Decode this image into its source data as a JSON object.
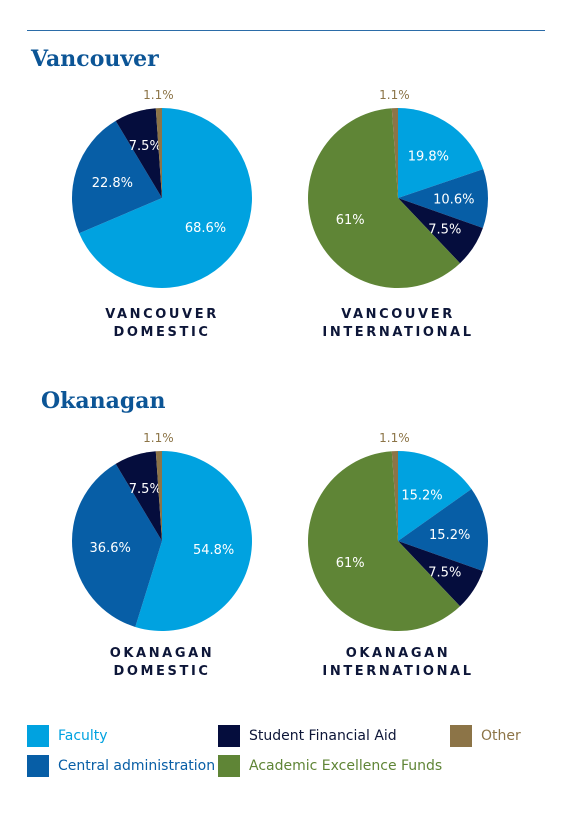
{
  "sections": [
    {
      "title": "Vancouver"
    },
    {
      "title": "Okanagan"
    }
  ],
  "colors": {
    "Faculty": "#00a2e0",
    "Central administration": "#075ea6",
    "Student Financial Aid": "#050d3d",
    "Other": "#8c7447",
    "Academic Excellence Funds": "#5f8536"
  },
  "legend": [
    {
      "label": "Faculty",
      "color": "#00a2e0",
      "text_color": "#00a2e0"
    },
    {
      "label": "Student Financial Aid",
      "color": "#050d3d",
      "text_color": "#0d1638"
    },
    {
      "label": "Other",
      "color": "#8c7447",
      "text_color": "#8c7447"
    },
    {
      "label": "Central administration",
      "color": "#075ea6",
      "text_color": "#075ea6"
    },
    {
      "label": "Academic Excellence Funds",
      "color": "#5f8536",
      "text_color": "#5f8536"
    }
  ],
  "chart_data": [
    {
      "type": "pie",
      "caption": [
        "VANCOUVER",
        "DOMESTIC"
      ],
      "slices": [
        {
          "label": "Faculty",
          "value": 68.6,
          "text": "68.6%"
        },
        {
          "label": "Central administration",
          "value": 22.8,
          "text": "22.8%"
        },
        {
          "label": "Student Financial Aid",
          "value": 7.5,
          "text": "7.5%"
        },
        {
          "label": "Other",
          "value": 1.1,
          "text": "1.1%"
        }
      ]
    },
    {
      "type": "pie",
      "caption": [
        "VANCOUVER",
        "INTERNATIONAL"
      ],
      "slices": [
        {
          "label": "Faculty",
          "value": 19.8,
          "text": "19.8%"
        },
        {
          "label": "Central administration",
          "value": 10.6,
          "text": "10.6%"
        },
        {
          "label": "Student Financial Aid",
          "value": 7.5,
          "text": "7.5%"
        },
        {
          "label": "Academic Excellence Funds",
          "value": 61,
          "text": "61%"
        },
        {
          "label": "Other",
          "value": 1.1,
          "text": "1.1%"
        }
      ]
    },
    {
      "type": "pie",
      "caption": [
        "OKANAGAN",
        "DOMESTIC"
      ],
      "slices": [
        {
          "label": "Faculty",
          "value": 54.8,
          "text": "54.8%"
        },
        {
          "label": "Central administration",
          "value": 36.6,
          "text": "36.6%"
        },
        {
          "label": "Student Financial Aid",
          "value": 7.5,
          "text": "7.5%"
        },
        {
          "label": "Other",
          "value": 1.1,
          "text": "1.1%"
        }
      ]
    },
    {
      "type": "pie",
      "caption": [
        "OKANAGAN",
        "INTERNATIONAL"
      ],
      "slices": [
        {
          "label": "Faculty",
          "value": 15.2,
          "text": "15.2%"
        },
        {
          "label": "Central administration",
          "value": 15.2,
          "text": "15.2%"
        },
        {
          "label": "Student Financial Aid",
          "value": 7.5,
          "text": "7.5%"
        },
        {
          "label": "Academic Excellence Funds",
          "value": 61,
          "text": "61%"
        },
        {
          "label": "Other",
          "value": 1.1,
          "text": "1.1%"
        }
      ]
    }
  ]
}
